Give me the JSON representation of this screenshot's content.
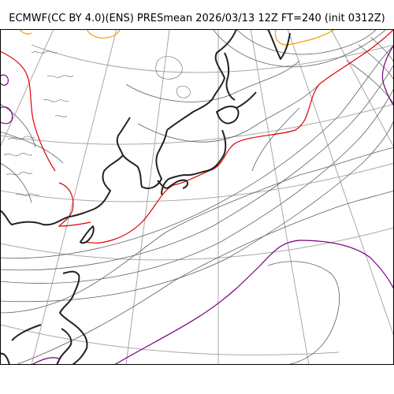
{
  "title": "ECMWF(CC BY 4.0)(ENS) PRESmean 2026/03/13 12Z FT=240 (init 0312Z)",
  "colors": {
    "coastline": "#222222",
    "graticule": "#a8a8a8",
    "isobar": "#606060",
    "isobar_red": "#e00000",
    "isobar_orange": "#f0a000",
    "isobar_purple": "#7a0080",
    "frame": "#000000",
    "background": "#ffffff"
  }
}
